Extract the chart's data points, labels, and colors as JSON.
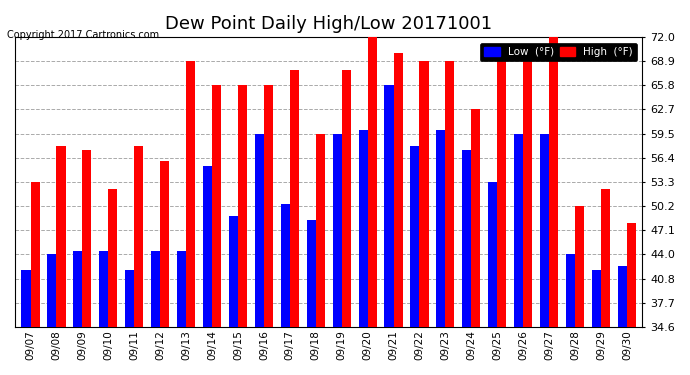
{
  "title": "Dew Point Daily High/Low 20171001",
  "copyright": "Copyright 2017 Cartronics.com",
  "dates": [
    "09/07",
    "09/08",
    "09/09",
    "09/10",
    "09/11",
    "09/12",
    "09/13",
    "09/14",
    "09/15",
    "09/16",
    "09/17",
    "09/18",
    "09/19",
    "09/20",
    "09/21",
    "09/22",
    "09/23",
    "09/24",
    "09/25",
    "09/26",
    "09/27",
    "09/28",
    "09/29",
    "09/30"
  ],
  "high": [
    53.3,
    58.0,
    57.5,
    52.5,
    58.0,
    56.0,
    68.9,
    65.8,
    65.8,
    65.8,
    67.8,
    59.5,
    67.8,
    72.0,
    70.0,
    68.9,
    68.9,
    62.7,
    68.9,
    70.0,
    72.0,
    50.2,
    52.5,
    48.0
  ],
  "low": [
    42.0,
    44.0,
    44.5,
    44.5,
    42.0,
    44.5,
    44.5,
    55.4,
    49.0,
    59.5,
    50.5,
    48.5,
    59.5,
    60.0,
    65.8,
    58.0,
    60.0,
    57.5,
    53.3,
    59.5,
    59.5,
    44.0,
    42.0,
    42.5
  ],
  "ylim_min": 34.6,
  "ylim_max": 72.0,
  "yticks": [
    34.6,
    37.7,
    40.8,
    44.0,
    47.1,
    50.2,
    53.3,
    56.4,
    59.5,
    62.7,
    65.8,
    68.9,
    72.0
  ],
  "bar_width": 0.35,
  "high_color": "#FF0000",
  "low_color": "#0000FF",
  "bg_color": "#FFFFFF",
  "plot_bg_color": "#FFFFFF",
  "grid_color": "#AAAAAA",
  "title_fontsize": 13,
  "legend_high_label": "High  (°F)",
  "legend_low_label": "Low  (°F)"
}
